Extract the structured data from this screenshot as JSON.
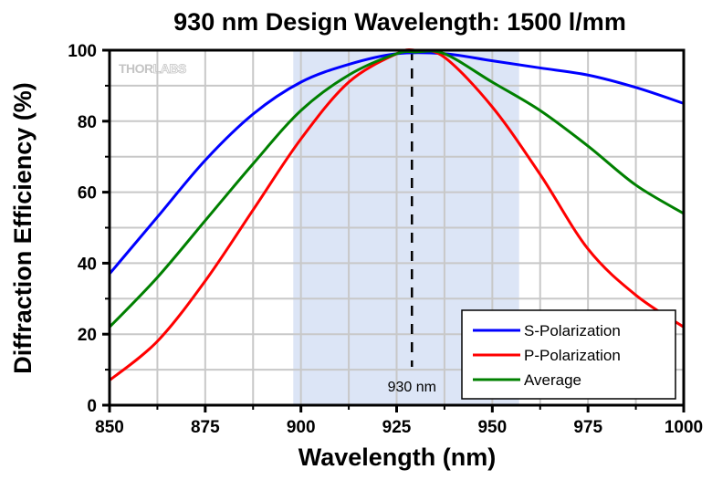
{
  "chart_data": {
    "type": "line",
    "title": "930 nm Design Wavelength: 1500 l/mm",
    "xlabel": "Wavelength (nm)",
    "ylabel": "Diffraction Efficiency (%)",
    "xlim": [
      850,
      1000
    ],
    "ylim": [
      0,
      100
    ],
    "xticks": [
      850,
      875,
      900,
      925,
      950,
      975,
      1000
    ],
    "xtick_labels": [
      "850",
      "875",
      "900",
      "925",
      "950",
      "975",
      "1000"
    ],
    "yticks": [
      0,
      20,
      40,
      60,
      80,
      100
    ],
    "ytick_labels": [
      "0",
      "20",
      "40",
      "60",
      "80",
      "100"
    ],
    "grid": true,
    "legend_position": "bottom-right",
    "watermark": {
      "text_bold": "THOR",
      "text_light": "LABS"
    },
    "shaded_band": {
      "x_start": 898,
      "x_end": 957,
      "color": "#dce5f6"
    },
    "design_line": {
      "x": 929,
      "label": "930 nm",
      "style": "dashed"
    },
    "series": [
      {
        "name": "S-Polarization",
        "color": "#0000ff",
        "x": [
          850,
          862.5,
          875,
          887.5,
          900,
          912.5,
          925,
          937.5,
          950,
          962.5,
          975,
          987.5,
          1000
        ],
        "values": [
          37,
          53,
          69,
          82,
          91,
          96,
          99,
          99,
          97,
          95,
          93,
          89.5,
          85
        ]
      },
      {
        "name": "P-Polarization",
        "color": "#ff0000",
        "x": [
          850,
          862.5,
          875,
          887.5,
          900,
          912.5,
          925,
          930,
          937.5,
          950,
          962.5,
          975,
          987.5,
          1000
        ],
        "values": [
          7,
          18,
          35,
          55,
          75,
          91,
          99,
          100,
          98,
          84,
          65,
          44,
          31,
          22
        ]
      },
      {
        "name": "Average",
        "color": "#008000",
        "x": [
          850,
          862.5,
          875,
          887.5,
          900,
          912.5,
          925,
          930,
          937.5,
          950,
          962.5,
          975,
          987.5,
          1000
        ],
        "values": [
          22,
          36,
          52,
          68,
          83,
          93,
          99,
          99.5,
          99,
          91,
          83,
          73,
          62,
          54
        ]
      }
    ]
  }
}
